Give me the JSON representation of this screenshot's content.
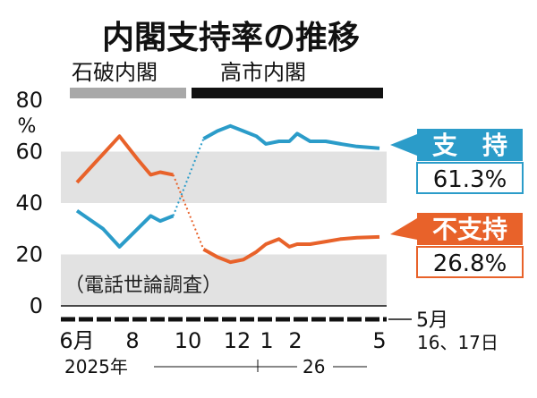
{
  "chart_data": {
    "type": "line",
    "title": "内閣支持率の推移",
    "y_unit": "%",
    "ylim": [
      0,
      80
    ],
    "y_ticks": [
      "0",
      "20",
      "40",
      "60",
      "80"
    ],
    "x_ticks": [
      "6月",
      "8",
      "10",
      "12",
      "1",
      "2",
      "5"
    ],
    "x_last_tick_label": "5月",
    "x_last_tick_sublabel": "16、17日",
    "year_labels": [
      "2025年",
      "26"
    ],
    "period_labels": [
      "石破内閣",
      "高市内閣"
    ],
    "note": "（電話世論調査）",
    "grid_bands": [
      [
        0,
        20
      ],
      [
        40,
        60
      ]
    ],
    "series": [
      {
        "name": "支　持",
        "color": "#2b9cc9",
        "latest_value_label": "61.3%",
        "points": [
          [
            "2025-06-01",
            37
          ],
          [
            "2025-07-01",
            30
          ],
          [
            "2025-07-20",
            23
          ],
          [
            "2025-08-10",
            30
          ],
          [
            "2025-08-25",
            35
          ],
          [
            "2025-09-05",
            33
          ],
          [
            "2025-09-20",
            35
          ],
          [
            "2025-10-25",
            65
          ],
          [
            "2025-11-10",
            68
          ],
          [
            "2025-11-25",
            70
          ],
          [
            "2025-12-10",
            68
          ],
          [
            "2025-12-25",
            66
          ],
          [
            "2026-01-05",
            63
          ],
          [
            "2026-01-20",
            64
          ],
          [
            "2026-02-01",
            64
          ],
          [
            "2026-02-10",
            67
          ],
          [
            "2026-02-25",
            64
          ],
          [
            "2026-03-15",
            64
          ],
          [
            "2026-04-01",
            63
          ],
          [
            "2026-04-20",
            62
          ],
          [
            "2026-05-16",
            61.3
          ]
        ]
      },
      {
        "name": "不支持",
        "color": "#e8622a",
        "latest_value_label": "26.8%",
        "points": [
          [
            "2025-06-01",
            48
          ],
          [
            "2025-06-20",
            55
          ],
          [
            "2025-07-20",
            66
          ],
          [
            "2025-08-10",
            57
          ],
          [
            "2025-08-25",
            51
          ],
          [
            "2025-09-05",
            52
          ],
          [
            "2025-09-20",
            51
          ],
          [
            "2025-10-25",
            22
          ],
          [
            "2025-11-10",
            19
          ],
          [
            "2025-11-25",
            17
          ],
          [
            "2025-12-10",
            18
          ],
          [
            "2025-12-25",
            21
          ],
          [
            "2026-01-05",
            24
          ],
          [
            "2026-01-20",
            26
          ],
          [
            "2026-02-01",
            23
          ],
          [
            "2026-02-10",
            24
          ],
          [
            "2026-02-25",
            24
          ],
          [
            "2026-03-15",
            25
          ],
          [
            "2026-04-01",
            26
          ],
          [
            "2026-04-20",
            26.5
          ],
          [
            "2026-05-16",
            26.8
          ]
        ]
      }
    ],
    "bridge_style": "dotted"
  }
}
